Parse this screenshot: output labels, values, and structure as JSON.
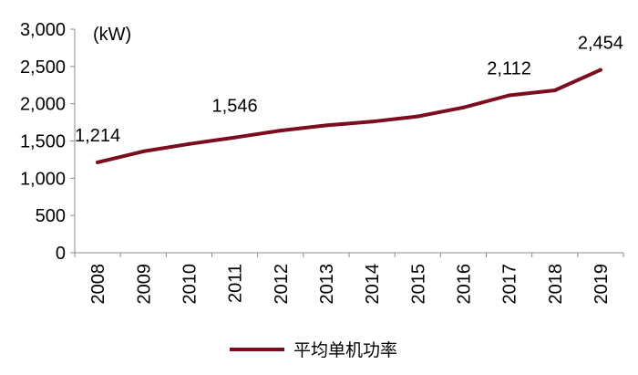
{
  "chart_data": {
    "type": "line",
    "unit_label": "(kW)",
    "categories": [
      "2008",
      "2009",
      "2010",
      "2011",
      "2012",
      "2013",
      "2014",
      "2015",
      "2016",
      "2017",
      "2018",
      "2019"
    ],
    "series": [
      {
        "name": "平均单机功率",
        "color": "#7b0d1e",
        "values": [
          1214,
          1360,
          1460,
          1546,
          1640,
          1710,
          1760,
          1830,
          1950,
          2112,
          2180,
          2454
        ]
      }
    ],
    "y_ticks": [
      "0",
      "500",
      "1,000",
      "1,500",
      "2,000",
      "2,500",
      "3,000"
    ],
    "ylim": [
      0,
      3000
    ],
    "data_labels": [
      {
        "index": 0,
        "text": "1,214"
      },
      {
        "index": 3,
        "text": "1,546"
      },
      {
        "index": 9,
        "text": "2,112"
      },
      {
        "index": 11,
        "text": "2,454"
      }
    ],
    "grid": false,
    "legend_position": "bottom"
  }
}
